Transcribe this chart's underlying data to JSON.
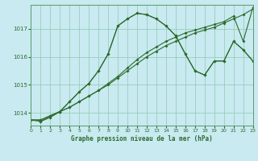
{
  "title": "Graphe pression niveau de la mer (hPa)",
  "background_color": "#c8eaf0",
  "grid_color": "#90c8b0",
  "line_color": "#2d6a2d",
  "xlim": [
    0,
    23
  ],
  "ylim": [
    1013.55,
    1017.85
  ],
  "yticks": [
    1014,
    1015,
    1016,
    1017
  ],
  "xticks": [
    0,
    1,
    2,
    3,
    4,
    5,
    6,
    7,
    8,
    9,
    10,
    11,
    12,
    13,
    14,
    15,
    16,
    17,
    18,
    19,
    20,
    21,
    22,
    23
  ],
  "series_linear": {
    "x": [
      0,
      1,
      2,
      3,
      4,
      5,
      6,
      7,
      8,
      9,
      10,
      11,
      12,
      13,
      14,
      15,
      16,
      17,
      18,
      19,
      20,
      21,
      22,
      23
    ],
    "y": [
      1013.75,
      1013.75,
      1013.9,
      1014.05,
      1014.2,
      1014.4,
      1014.6,
      1014.8,
      1015.0,
      1015.25,
      1015.5,
      1015.75,
      1016.0,
      1016.2,
      1016.4,
      1016.55,
      1016.7,
      1016.85,
      1016.95,
      1017.05,
      1017.2,
      1017.35,
      1017.5,
      1017.7
    ]
  },
  "series_linear2": {
    "x": [
      0,
      1,
      2,
      3,
      4,
      5,
      6,
      7,
      8,
      9,
      10,
      11,
      12,
      13,
      14,
      15,
      16,
      17,
      18,
      19,
      20,
      21,
      22,
      23
    ],
    "y": [
      1013.75,
      1013.75,
      1013.9,
      1014.05,
      1014.2,
      1014.4,
      1014.6,
      1014.8,
      1015.05,
      1015.3,
      1015.6,
      1015.9,
      1016.15,
      1016.35,
      1016.55,
      1016.7,
      1016.85,
      1016.95,
      1017.05,
      1017.15,
      1017.25,
      1017.45,
      1016.55,
      1017.75
    ]
  },
  "series_peak": {
    "x": [
      0,
      1,
      2,
      3,
      4,
      5,
      6,
      7,
      8,
      9,
      10,
      11,
      12,
      13,
      14,
      15,
      16,
      17,
      18,
      19,
      20,
      21,
      22,
      23
    ],
    "y": [
      1013.75,
      1013.7,
      1013.85,
      1014.05,
      1014.4,
      1014.75,
      1015.05,
      1015.5,
      1016.1,
      1017.1,
      1017.35,
      1017.55,
      1017.5,
      1017.35,
      1017.1,
      1016.75,
      1016.1,
      1015.5,
      1015.35,
      1015.85,
      1015.85,
      1016.55,
      1016.25,
      1015.85
    ]
  },
  "series_peak2": {
    "x": [
      1,
      2,
      3,
      4,
      5,
      6,
      7,
      8,
      9,
      10,
      11,
      12,
      13,
      14,
      15,
      16,
      17,
      18,
      19,
      20,
      21,
      22,
      23
    ],
    "y": [
      1013.7,
      1013.85,
      1014.05,
      1014.4,
      1014.75,
      1015.05,
      1015.5,
      1016.1,
      1017.1,
      1017.35,
      1017.55,
      1017.5,
      1017.35,
      1017.1,
      1016.75,
      1016.1,
      1015.5,
      1015.35,
      1015.85,
      1015.85,
      1016.55,
      1016.25,
      1015.85
    ]
  }
}
